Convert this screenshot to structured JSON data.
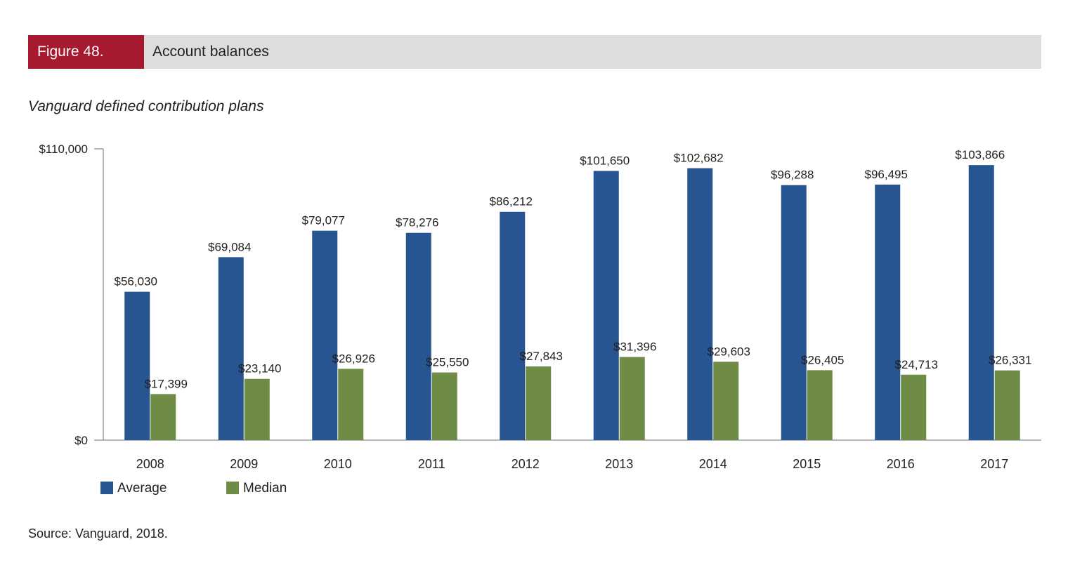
{
  "figure": {
    "number_label": "Figure 48.",
    "title": "Account balances"
  },
  "subtitle": "Vanguard defined contribution plans",
  "source": "Source: Vanguard, 2018.",
  "colors": {
    "average": "#265591",
    "median": "#6e8c45",
    "header_accent": "#a6192e",
    "header_bg": "#dcdddd"
  },
  "chart_data": {
    "type": "bar",
    "categories": [
      "2008",
      "2009",
      "2010",
      "2011",
      "2012",
      "2013",
      "2014",
      "2015",
      "2016",
      "2017"
    ],
    "series": [
      {
        "name": "Average",
        "values": [
          56030,
          69084,
          79077,
          78276,
          86212,
          101650,
          102682,
          96288,
          96495,
          103866
        ],
        "labels": [
          "$56,030",
          "$69,084",
          "$79,077",
          "$78,276",
          "$86,212",
          "$101,650",
          "$102,682",
          "$96,288",
          "$96,495",
          "$103,866"
        ]
      },
      {
        "name": "Median",
        "values": [
          17399,
          23140,
          26926,
          25550,
          27843,
          31396,
          29603,
          26405,
          24713,
          26331
        ],
        "labels": [
          "$17,399",
          "$23,140",
          "$26,926",
          "$25,550",
          "$27,843",
          "$31,396",
          "$29,603",
          "$26,405",
          "$24,713",
          "$26,331"
        ]
      }
    ],
    "ylim": [
      0,
      110000
    ],
    "yticks": [
      {
        "value": 0,
        "label": "$0"
      },
      {
        "value": 110000,
        "label": "$110,000"
      }
    ],
    "grid": false,
    "legend_position": "bottom-left"
  }
}
